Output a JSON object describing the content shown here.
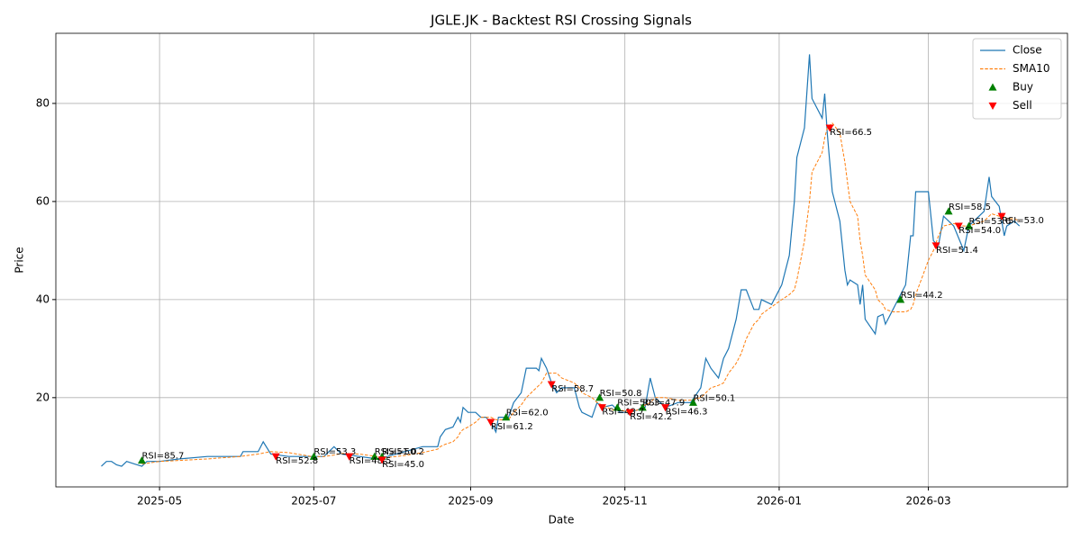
{
  "chart_data": {
    "type": "line",
    "title": "JGLE.JK - Backtest RSI Crossing Signals",
    "xlabel": "Date",
    "ylabel": "Price",
    "x": [
      "2025-04-08",
      "2025-04-10",
      "2025-04-12",
      "2025-04-14",
      "2025-04-16",
      "2025-04-18",
      "2025-04-21",
      "2025-04-24",
      "2025-04-26",
      "2025-05-01",
      "2025-05-09",
      "2025-05-20",
      "2025-06-02",
      "2025-06-03",
      "2025-06-09",
      "2025-06-11",
      "2025-06-14",
      "2025-06-21",
      "2025-06-30",
      "2025-07-05",
      "2025-07-09",
      "2025-07-12",
      "2025-07-19",
      "2025-07-26",
      "2025-07-30",
      "2025-08-06",
      "2025-08-13",
      "2025-08-19",
      "2025-08-20",
      "2025-08-22",
      "2025-08-25",
      "2025-08-27",
      "2025-08-28",
      "2025-08-29",
      "2025-08-31",
      "2025-09-03",
      "2025-09-05",
      "2025-09-07",
      "2025-09-09",
      "2025-09-11",
      "2025-09-12",
      "2025-09-16",
      "2025-09-18",
      "2025-09-21",
      "2025-09-23",
      "2025-09-27",
      "2025-09-28",
      "2025-09-29",
      "2025-10-01",
      "2025-10-03",
      "2025-10-05",
      "2025-10-07",
      "2025-10-12",
      "2025-10-14",
      "2025-10-15",
      "2025-10-19",
      "2025-10-21",
      "2025-10-23",
      "2025-10-27",
      "2025-10-30",
      "2025-11-03",
      "2025-11-06",
      "2025-11-09",
      "2025-11-11",
      "2025-11-13",
      "2025-11-17",
      "2025-11-22",
      "2025-11-27",
      "2025-12-01",
      "2025-12-03",
      "2025-12-05",
      "2025-12-08",
      "2025-12-10",
      "2025-12-12",
      "2025-12-15",
      "2025-12-17",
      "2025-12-19",
      "2025-12-22",
      "2025-12-24",
      "2025-12-25",
      "2025-12-29",
      "2026-01-02",
      "2026-01-05",
      "2026-01-07",
      "2026-01-08",
      "2026-01-11",
      "2026-01-13",
      "2026-01-14",
      "2026-01-18",
      "2026-01-19",
      "2026-01-20",
      "2026-01-22",
      "2026-01-25",
      "2026-01-27",
      "2026-01-28",
      "2026-01-29",
      "2026-02-01",
      "2026-02-02",
      "2026-02-03",
      "2026-02-04",
      "2026-02-08",
      "2026-02-09",
      "2026-02-11",
      "2026-02-12",
      "2026-02-15",
      "2026-02-17",
      "2026-02-20",
      "2026-02-22",
      "2026-02-23",
      "2026-02-24",
      "2026-03-01",
      "2026-03-03",
      "2026-03-05",
      "2026-03-07",
      "2026-03-11",
      "2026-03-15",
      "2026-03-17",
      "2026-03-23",
      "2026-03-25",
      "2026-03-26",
      "2026-03-29",
      "2026-03-31",
      "2026-04-01",
      "2026-04-04",
      "2026-04-06"
    ],
    "series": [
      {
        "name": "Close",
        "color": "#1f77b4",
        "dash": false,
        "values": [
          6,
          7,
          7,
          6.3,
          6,
          7,
          6.5,
          6,
          7,
          7,
          7.5,
          8,
          8,
          9,
          9,
          11,
          8.5,
          8,
          8,
          8,
          10,
          8.5,
          8,
          7.5,
          8,
          9,
          10,
          10,
          12,
          13.5,
          14,
          16,
          15,
          18,
          17,
          17,
          16,
          16,
          15,
          13,
          16,
          16,
          19,
          21,
          26,
          26,
          25.5,
          28,
          26,
          23,
          21,
          22,
          22,
          18,
          17,
          16,
          19,
          18,
          18.5,
          17,
          17,
          17.5,
          18,
          24,
          20,
          18,
          19,
          19,
          22,
          28,
          26,
          24,
          28,
          30,
          36,
          42,
          42,
          38,
          38,
          40,
          39,
          43,
          49,
          60,
          69,
          75,
          90,
          81,
          77,
          82,
          74,
          62,
          56,
          46,
          43,
          44,
          43,
          39,
          43,
          36,
          33,
          36.5,
          37,
          35,
          38,
          40,
          43,
          53,
          53,
          62,
          62,
          52,
          51,
          57,
          55,
          50,
          55,
          58,
          65,
          61,
          59,
          53,
          55,
          56,
          55
        ]
      },
      {
        "name": "SMA10",
        "color": "#ff7f0e",
        "dash": true,
        "values": [
          null,
          null,
          null,
          null,
          null,
          null,
          null,
          6.5,
          6.6,
          7,
          7.2,
          7.5,
          8,
          8.1,
          8.5,
          8.7,
          9,
          8.8,
          8,
          8,
          8.3,
          8.6,
          8.5,
          8,
          7.8,
          8.2,
          8.8,
          9.5,
          10,
          10.5,
          11,
          12,
          13,
          13.5,
          14,
          15,
          16,
          16,
          16,
          15.5,
          15.5,
          15.5,
          17,
          18.5,
          20,
          22,
          22.5,
          23,
          25,
          25,
          25,
          24,
          23,
          22,
          21,
          20,
          19,
          18.5,
          17.5,
          17.5,
          17,
          17.5,
          18.5,
          19,
          20,
          20,
          19.5,
          19.5,
          20,
          21,
          22,
          22.5,
          23,
          25,
          27,
          29,
          32,
          35,
          36,
          37,
          38.5,
          40,
          41,
          42,
          44,
          52,
          60,
          66,
          70,
          73,
          75,
          76,
          74,
          68,
          64,
          60,
          57,
          52,
          49,
          45,
          42,
          40,
          39,
          38,
          37.5,
          37.5,
          37.5,
          38,
          39,
          41,
          48,
          50,
          53,
          55,
          55.5,
          55,
          55,
          56,
          57,
          57.5,
          57,
          57,
          56.5,
          56.5,
          56
        ]
      },
      {
        "name": "Buy",
        "type": "scatter",
        "marker": "up",
        "color": "green",
        "x": [
          "2025-04-24",
          "2025-07-01",
          "2025-07-25",
          "2025-07-28",
          "2025-09-15",
          "2025-10-22",
          "2025-10-29",
          "2025-11-08",
          "2025-11-28",
          "2026-02-18",
          "2026-03-09",
          "2026-03-17"
        ],
        "values": [
          7.2,
          8,
          8,
          8,
          16,
          20,
          18,
          18,
          19,
          40,
          58,
          55
        ],
        "labels": [
          "RSI=85.7",
          "RSI=53.3",
          "RSI=51.0",
          "RSI=50.2",
          "RSI=62.0",
          "RSI=50.8",
          "RSI=50.3",
          "RSI=47.9",
          "RSI=50.1",
          "RSI=44.2",
          "RSI=58.5",
          "RSI=53.6"
        ]
      },
      {
        "name": "Sell",
        "type": "scatter",
        "marker": "down",
        "color": "red",
        "x": [
          "2025-06-16",
          "2025-07-15",
          "2025-07-28",
          "2025-09-09",
          "2025-10-03",
          "2025-10-23",
          "2025-11-03",
          "2025-11-17",
          "2026-01-21",
          "2026-03-04",
          "2026-03-13",
          "2026-03-30"
        ],
        "values": [
          8,
          8,
          7.3,
          15,
          22.7,
          18,
          17,
          18,
          75,
          51,
          55,
          57
        ],
        "labels": [
          "RSI=52.8",
          "RSI=48.5",
          "RSI=45.0",
          "RSI=61.2",
          "RSI=58.7",
          "RSI=48.7",
          "RSI=42.2",
          "RSI=46.3",
          "RSI=66.5",
          "RSI=51.4",
          "RSI=54.0",
          "RSI=53.0"
        ]
      }
    ],
    "xlim": [
      "2025-03-21",
      "2026-04-25"
    ],
    "xticks": [
      "2025-05",
      "2025-07",
      "2025-09",
      "2025-11",
      "2026-01",
      "2026-03"
    ],
    "ylim": [
      1.8,
      94.3
    ],
    "yticks": [
      20,
      40,
      60,
      80
    ],
    "grid": true,
    "legend": "upper right"
  }
}
